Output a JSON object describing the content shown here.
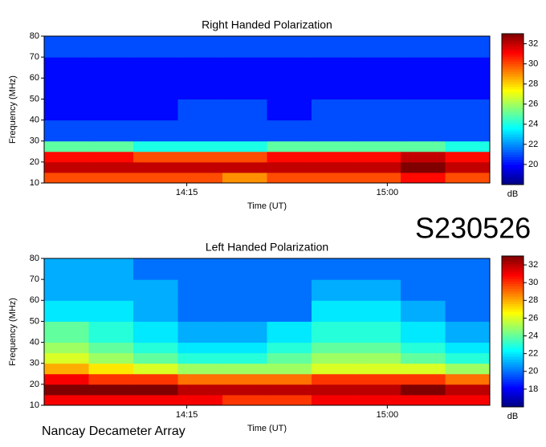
{
  "chart_data": [
    {
      "type": "heatmap",
      "title": "Right Handed Polarization",
      "xlabel": "Time (UT)",
      "ylabel": "Frequency (MHz)",
      "colorbar_label": "dB",
      "colormap": "jet",
      "xlim": [
        823,
        923
      ],
      "xticks": [
        {
          "value": 855,
          "label": "14:15"
        },
        {
          "value": 900,
          "label": "15:00"
        }
      ],
      "ylim": [
        10,
        80
      ],
      "yticks": [
        10,
        20,
        30,
        40,
        50,
        60,
        70,
        80
      ],
      "clim": [
        18,
        33
      ],
      "cticks": [
        20,
        22,
        24,
        26,
        28,
        30,
        32
      ],
      "xbins": [
        823,
        833,
        843,
        853,
        863,
        873,
        883,
        893,
        903,
        913,
        923
      ],
      "ybins": [
        10,
        15,
        20,
        25,
        30,
        35,
        40,
        50,
        60,
        70,
        80
      ],
      "values": [
        [
          30,
          30,
          30,
          30,
          29,
          30,
          30,
          30,
          31,
          30
        ],
        [
          32,
          32,
          32,
          32,
          32,
          32,
          32,
          32,
          33,
          32
        ],
        [
          31,
          31,
          30,
          30,
          30,
          31,
          31,
          31,
          32,
          31
        ],
        [
          25,
          25,
          24,
          24,
          24,
          25,
          25,
          25,
          25,
          24
        ],
        [
          21,
          21,
          21,
          21,
          21,
          21,
          21,
          21,
          21,
          21
        ],
        [
          21,
          21,
          21,
          21,
          21,
          21,
          21,
          21,
          21,
          21
        ],
        [
          20,
          20,
          20,
          21,
          21,
          20,
          21,
          21,
          21,
          21
        ],
        [
          20,
          20,
          20,
          20,
          20,
          20,
          20,
          20,
          20,
          20
        ],
        [
          20,
          20,
          20,
          20,
          20,
          20,
          20,
          20,
          20,
          20
        ],
        [
          21,
          21,
          21,
          21,
          21,
          21,
          21,
          21,
          21,
          21
        ]
      ]
    },
    {
      "type": "heatmap",
      "title": "Left Handed Polarization",
      "xlabel": "Time (UT)",
      "ylabel": "Frequency (MHz)",
      "colorbar_label": "dB",
      "colormap": "jet",
      "xlim": [
        823,
        923
      ],
      "xticks": [
        {
          "value": 855,
          "label": "14:15"
        },
        {
          "value": 900,
          "label": "15:00"
        }
      ],
      "ylim": [
        10,
        80
      ],
      "yticks": [
        10,
        20,
        30,
        40,
        50,
        60,
        70,
        80
      ],
      "clim": [
        16,
        33
      ],
      "cticks": [
        18,
        20,
        22,
        24,
        26,
        28,
        30,
        32
      ],
      "xbins": [
        823,
        833,
        843,
        853,
        863,
        873,
        883,
        893,
        903,
        913,
        923
      ],
      "ybins": [
        10,
        15,
        20,
        25,
        30,
        35,
        40,
        50,
        60,
        70,
        80
      ],
      "values": [
        [
          31,
          31,
          31,
          31,
          30,
          30,
          31,
          31,
          31,
          31
        ],
        [
          33,
          33,
          33,
          32,
          32,
          32,
          32,
          32,
          33,
          32
        ],
        [
          31,
          30,
          30,
          29,
          29,
          29,
          30,
          30,
          30,
          29
        ],
        [
          28,
          27,
          26,
          25,
          25,
          25,
          26,
          26,
          26,
          25
        ],
        [
          26,
          25,
          24,
          23,
          23,
          24,
          25,
          25,
          24,
          23
        ],
        [
          25,
          24,
          23,
          22,
          22,
          23,
          24,
          24,
          23,
          22
        ],
        [
          24,
          23,
          22,
          21,
          21,
          22,
          23,
          23,
          22,
          21
        ],
        [
          22,
          22,
          21,
          20,
          20,
          20,
          22,
          22,
          21,
          20
        ],
        [
          21,
          21,
          21,
          20,
          20,
          20,
          21,
          21,
          20,
          20
        ],
        [
          21,
          21,
          20,
          20,
          20,
          20,
          20,
          20,
          20,
          20
        ]
      ]
    }
  ],
  "event_id": "S230526",
  "footer": "Nancay Decameter Array"
}
